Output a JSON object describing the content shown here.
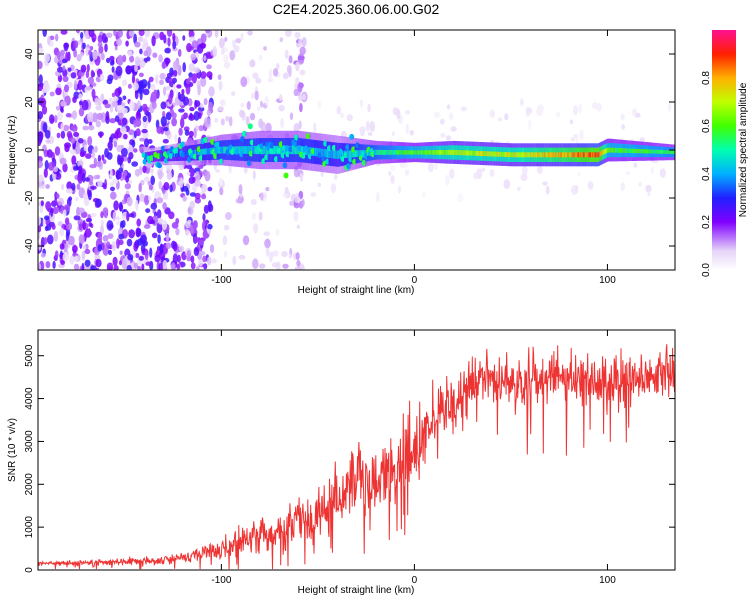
{
  "title": "C2E4.2025.360.06.00.G02",
  "chart_data": [
    {
      "type": "heatmap",
      "xlabel": "Height of straight line (km)",
      "ylabel": "Frequency (Hz)",
      "xlim": [
        -195,
        135
      ],
      "ylim": [
        -50,
        50
      ],
      "xticks": [
        -100,
        0,
        100
      ],
      "yticks": [
        -40,
        -20,
        0,
        20,
        40
      ],
      "colorbar": {
        "label": "Normalized spectral amplitude",
        "range": [
          0,
          1
        ],
        "ticks": [
          0.0,
          0.2,
          0.4,
          0.6,
          0.8
        ]
      },
      "signal_band": {
        "x": [
          -140,
          -100,
          -80,
          -60,
          -40,
          -20,
          0,
          20,
          50,
          80,
          95,
          100,
          135
        ],
        "center_hz": [
          -3,
          0,
          0,
          0,
          -2,
          -1,
          -1,
          -1,
          -2,
          -2,
          -2,
          0,
          -1
        ],
        "halfwidth_hz": [
          2,
          4,
          5,
          5,
          5,
          3,
          2.5,
          3,
          3,
          3,
          3,
          3,
          2
        ],
        "amplitude": [
          0.3,
          0.45,
          0.45,
          0.45,
          0.4,
          0.5,
          0.6,
          0.7,
          0.7,
          0.8,
          0.9,
          0.6,
          0.55
        ]
      }
    },
    {
      "type": "line",
      "xlabel": "Height of straight line (km)",
      "ylabel": "SNR (10 * v/v)",
      "xlim": [
        -195,
        135
      ],
      "ylim": [
        0,
        5600
      ],
      "xticks": [
        -100,
        0,
        100
      ],
      "yticks": [
        0,
        1000,
        2000,
        3000,
        4000,
        5000
      ],
      "color": "#ee3333",
      "series": [
        {
          "name": "SNR",
          "x": [
            -195,
            -170,
            -150,
            -130,
            -120,
            -110,
            -100,
            -90,
            -80,
            -70,
            -60,
            -50,
            -40,
            -30,
            -20,
            -10,
            0,
            10,
            20,
            30,
            40,
            50,
            60,
            70,
            80,
            90,
            100,
            110,
            120,
            135
          ],
          "y": [
            150,
            170,
            200,
            240,
            300,
            400,
            500,
            650,
            800,
            950,
            1100,
            1300,
            1650,
            2000,
            2200,
            2400,
            2800,
            3400,
            3900,
            4300,
            4500,
            4300,
            4500,
            4500,
            4600,
            4400,
            4400,
            4500,
            4500,
            4600
          ],
          "noise": [
            60,
            80,
            100,
            120,
            150,
            200,
            300,
            450,
            550,
            650,
            800,
            900,
            1000,
            1000,
            1000,
            1100,
            1300,
            1300,
            1000,
            900,
            900,
            800,
            800,
            800,
            800,
            800,
            800,
            800,
            700,
            700
          ]
        }
      ]
    }
  ]
}
